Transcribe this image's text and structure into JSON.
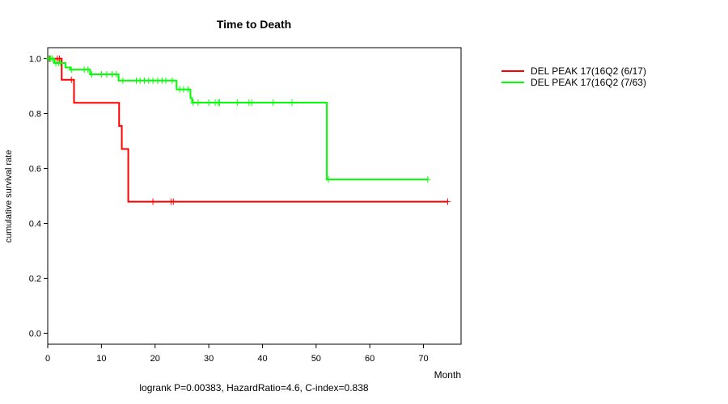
{
  "chart_data": {
    "type": "line",
    "title": "Time to Death",
    "xlabel": "Month",
    "ylabel": "cumulative survival rate",
    "footnote": "logrank P=0.00383, HazardRatio=4.6, C-index=0.838",
    "xlim": [
      0,
      77
    ],
    "ylim": [
      -0.04,
      1.04
    ],
    "x_ticks": [
      0,
      10,
      20,
      30,
      40,
      50,
      60,
      70
    ],
    "y_ticks": [
      0.0,
      0.2,
      0.4,
      0.6,
      0.8,
      1.0
    ],
    "y_tick_labels": [
      "0.0",
      "0.2",
      "0.4",
      "0.6",
      "0.8",
      "1.0"
    ],
    "legend_position": "top-right outside plot",
    "series": [
      {
        "name": "DEL PEAK 17(16Q2 (6/17)",
        "color": "#ff0000",
        "steps": [
          [
            0,
            1.0
          ],
          [
            2.6,
            0.923
          ],
          [
            4.9,
            0.839
          ],
          [
            13.3,
            0.755
          ],
          [
            13.8,
            0.671
          ],
          [
            15.0,
            0.479
          ],
          [
            74.5,
            0.479
          ]
        ],
        "censor_times": [
          0.4,
          1.8,
          2.2,
          4.4,
          19.6,
          23.0,
          23.4,
          74.5
        ]
      },
      {
        "name": "DEL PEAK 17(16Q2 (7/63)",
        "color": "#00ff00",
        "steps": [
          [
            0,
            1.0
          ],
          [
            1.2,
            0.984
          ],
          [
            3.3,
            0.968
          ],
          [
            4.2,
            0.96
          ],
          [
            7.9,
            0.943
          ],
          [
            13.2,
            0.92
          ],
          [
            24.0,
            0.888
          ],
          [
            26.6,
            0.856
          ],
          [
            26.9,
            0.84
          ],
          [
            52.0,
            0.56
          ],
          [
            70.8,
            0.56
          ]
        ],
        "censor_times": [
          0.2,
          0.5,
          0.8,
          1.5,
          2.0,
          2.4,
          4.4,
          6.8,
          7.5,
          8.2,
          10.0,
          11.0,
          12.0,
          12.8,
          14.0,
          16.5,
          17.2,
          18.0,
          18.8,
          19.6,
          20.5,
          21.3,
          22.0,
          23.2,
          24.6,
          25.3,
          26.1,
          27.1,
          28.0,
          30.0,
          31.2,
          31.8,
          32.0,
          35.3,
          37.5,
          38.0,
          42.0,
          45.5,
          52.3,
          70.8
        ]
      }
    ]
  }
}
